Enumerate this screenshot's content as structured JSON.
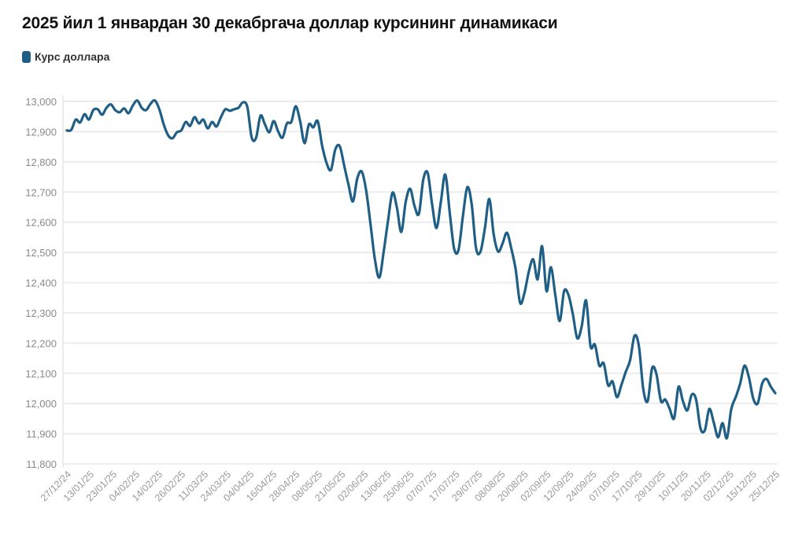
{
  "chart_data": {
    "type": "line",
    "title": "2025 йил 1 январдан 30 декабргача доллар курсининг динамикаси",
    "xlabel": "",
    "ylabel": "",
    "ylim": [
      11800,
      13000
    ],
    "yticks": [
      13000,
      12900,
      12800,
      12700,
      12600,
      12500,
      12400,
      12300,
      12200,
      12100,
      12000,
      11900,
      11800
    ],
    "ytick_labels": [
      "13,000",
      "12,900",
      "12,800",
      "12,700",
      "12,600",
      "12,500",
      "12,400",
      "12,300",
      "12,200",
      "12,100",
      "12,000",
      "11,900",
      "11,800"
    ],
    "xtick_labels": [
      "27/12/24",
      "13/01/25",
      "23/01/25",
      "04/02/25",
      "14/02/25",
      "26/02/25",
      "11/03/25",
      "24/03/25",
      "04/04/25",
      "16/04/25",
      "28/04/25",
      "08/05/25",
      "21/05/25",
      "02/06/25",
      "13/06/25",
      "25/06/25",
      "07/07/25",
      "17/07/25",
      "29/07/25",
      "08/08/25",
      "20/08/25",
      "02/09/25",
      "12/09/25",
      "24/09/25",
      "07/10/25",
      "17/10/25",
      "29/10/25",
      "10/11/25",
      "20/11/25",
      "02/12/25",
      "15/12/25",
      "25/12/25"
    ],
    "grid": true,
    "legend_position": "top-left",
    "series": [
      {
        "name": "Курс доллара",
        "color": "#1f5f85",
        "values": [
          12904,
          12906,
          12940,
          12930,
          12958,
          12940,
          12971,
          12974,
          12956,
          12979,
          12990,
          12971,
          12964,
          12977,
          12961,
          12987,
          13003,
          12979,
          12971,
          12992,
          13003,
          12974,
          12924,
          12888,
          12878,
          12898,
          12904,
          12932,
          12919,
          12948,
          12927,
          12940,
          12911,
          12932,
          12917,
          12948,
          12974,
          12969,
          12974,
          12979,
          12997,
          12982,
          12880,
          12880,
          12953,
          12924,
          12898,
          12935,
          12901,
          12880,
          12927,
          12932,
          12984,
          12935,
          12862,
          12924,
          12914,
          12935,
          12854,
          12797,
          12773,
          12841,
          12852,
          12789,
          12724,
          12669,
          12745,
          12768,
          12706,
          12594,
          12477,
          12417,
          12503,
          12607,
          12698,
          12648,
          12568,
          12667,
          12711,
          12654,
          12628,
          12742,
          12763,
          12659,
          12581,
          12669,
          12758,
          12633,
          12513,
          12508,
          12620,
          12716,
          12659,
          12513,
          12503,
          12581,
          12677,
          12560,
          12503,
          12529,
          12565,
          12513,
          12443,
          12333,
          12367,
          12438,
          12477,
          12411,
          12521,
          12372,
          12451,
          12359,
          12273,
          12372,
          12359,
          12294,
          12216,
          12255,
          12341,
          12190,
          12195,
          12125,
          12133,
          12060,
          12073,
          12021,
          12060,
          12104,
          12143,
          12224,
          12190,
          12047,
          12008,
          12117,
          12096,
          12008,
          12013,
          11982,
          11951,
          12055,
          12008,
          11977,
          12029,
          12013,
          11917,
          11912,
          11982,
          11938,
          11888,
          11935,
          11885,
          11982,
          12021,
          12065,
          12125,
          12086,
          12016,
          12000,
          12065,
          12081,
          12055,
          12034
        ]
      }
    ]
  }
}
